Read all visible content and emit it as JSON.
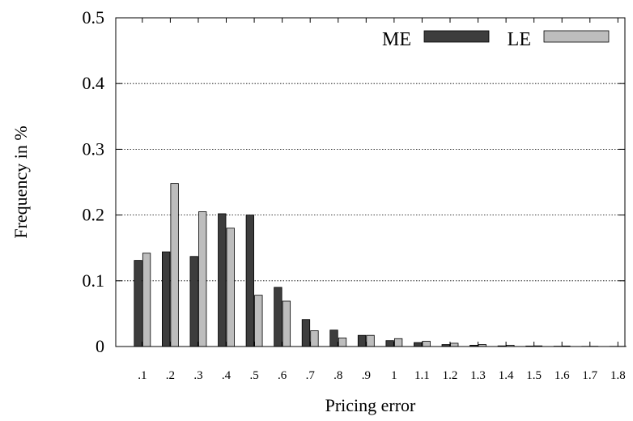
{
  "chart_data": {
    "type": "bar",
    "xlabel": "Pricing error",
    "ylabel": "Frequency in %",
    "ylim": [
      0,
      0.5
    ],
    "yticks": [
      "0",
      "0.1",
      "0.2",
      "0.3",
      "0.4",
      "0.5"
    ],
    "categories": [
      ".1",
      ".2",
      ".3",
      ".4",
      ".5",
      ".6",
      ".7",
      ".8",
      ".9",
      "1",
      "1.1",
      "1.2",
      "1.3",
      "1.4",
      "1.5",
      "1.6",
      "1.7",
      "1.8"
    ],
    "grid": true,
    "legend_position": "top-right",
    "series": [
      {
        "name": "ME",
        "color": "#3d3d3d",
        "values": [
          0.131,
          0.144,
          0.137,
          0.202,
          0.2,
          0.09,
          0.041,
          0.025,
          0.017,
          0.009,
          0.006,
          0.003,
          0.002,
          0.001,
          0.0008,
          0.0005,
          0.0003,
          0.0003
        ]
      },
      {
        "name": "LE",
        "color": "#bdbdbd",
        "values": [
          0.142,
          0.248,
          0.205,
          0.18,
          0.078,
          0.069,
          0.024,
          0.013,
          0.017,
          0.012,
          0.008,
          0.005,
          0.003,
          0.002,
          0.001,
          0.0008,
          0.0004,
          0.0003
        ]
      }
    ]
  }
}
